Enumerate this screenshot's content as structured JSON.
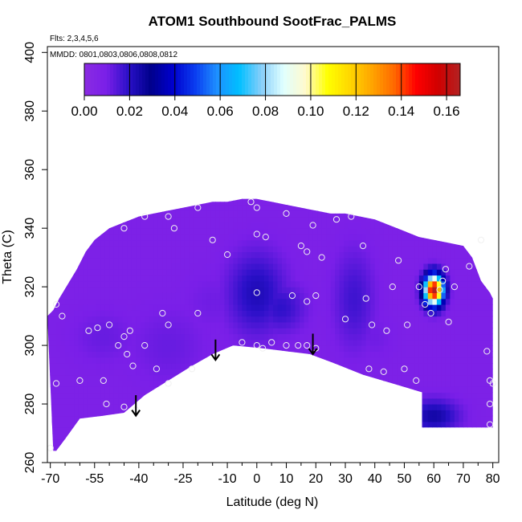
{
  "chart_data": {
    "type": "heatmap",
    "title": "ATOM1 Southbound SootFrac_PALMS",
    "subtitle_flights": "Flts: 2,3,4,5,6",
    "subtitle_dates": "MMDD: 0801,0803,0806,0808,0812",
    "xlabel": "Latitude (deg N)",
    "ylabel": "Theta (C)",
    "xlim": [
      -71,
      82
    ],
    "ylim": [
      260,
      402
    ],
    "x_ticks": [
      -70,
      -55,
      -40,
      -25,
      -10,
      0,
      10,
      20,
      30,
      40,
      50,
      60,
      70,
      80
    ],
    "x_tick_labels": [
      "-70",
      "-55",
      "-40",
      "-25",
      "-10",
      "0",
      "10",
      "20",
      "30",
      "40",
      "50",
      "60",
      "70",
      "80"
    ],
    "x_minor_ticks": [
      -65,
      -60,
      -50,
      -45,
      -35,
      -30,
      -20,
      -15,
      -5,
      5,
      15,
      25,
      35,
      45,
      55,
      65,
      75
    ],
    "y_ticks": [
      260,
      280,
      300,
      320,
      340,
      360,
      380,
      400
    ],
    "y_tick_labels": [
      "260",
      "280",
      "300",
      "320",
      "340",
      "360",
      "380",
      "400"
    ],
    "colorbar": {
      "min": 0.0,
      "max": 0.166,
      "ticks": [
        0.0,
        0.02,
        0.04,
        0.06,
        0.08,
        0.1,
        0.12,
        0.14,
        0.16
      ],
      "tick_labels": [
        "0.00",
        "0.02",
        "0.04",
        "0.06",
        "0.08",
        "0.10",
        "0.12",
        "0.14",
        "0.16"
      ],
      "colors": [
        "#8a2be2",
        "#7a1fe8",
        "#2a10c8",
        "#00008b",
        "#0000cd",
        "#0a3cf0",
        "#1e90ff",
        "#00bfff",
        "#87cefa",
        "#e0ffff",
        "#fffacd",
        "#ffff00",
        "#ffd700",
        "#ffa500",
        "#ff6a00",
        "#ff0000",
        "#d00000",
        "#b22222"
      ]
    },
    "background_value": 0.008,
    "domain_top": [
      [
        -71,
        310
      ],
      [
        -69,
        312
      ],
      [
        -67,
        316
      ],
      [
        -64,
        321
      ],
      [
        -61,
        326
      ],
      [
        -58,
        332
      ],
      [
        -55,
        336
      ],
      [
        -50,
        340
      ],
      [
        -45,
        342
      ],
      [
        -40,
        344
      ],
      [
        -35,
        345
      ],
      [
        -30,
        346
      ],
      [
        -25,
        347
      ],
      [
        -20,
        348
      ],
      [
        -15,
        349
      ],
      [
        -10,
        349
      ],
      [
        -5,
        350
      ],
      [
        0,
        350
      ],
      [
        5,
        349
      ],
      [
        10,
        348
      ],
      [
        15,
        347
      ],
      [
        20,
        346
      ],
      [
        25,
        345
      ],
      [
        30,
        345
      ],
      [
        35,
        344
      ],
      [
        40,
        343
      ],
      [
        45,
        341
      ],
      [
        50,
        339
      ],
      [
        55,
        337
      ],
      [
        60,
        336
      ],
      [
        65,
        335
      ],
      [
        70,
        334
      ],
      [
        73,
        330
      ],
      [
        76,
        322
      ],
      [
        79,
        318
      ],
      [
        80,
        316
      ]
    ],
    "domain_bottom": [
      [
        80,
        272
      ],
      [
        56,
        272
      ],
      [
        56,
        284
      ],
      [
        46,
        287
      ],
      [
        36,
        290
      ],
      [
        26,
        294
      ],
      [
        18,
        297
      ],
      [
        10,
        298
      ],
      [
        2,
        299
      ],
      [
        -8,
        300
      ],
      [
        -15,
        297
      ],
      [
        -22,
        293
      ],
      [
        -30,
        288
      ],
      [
        -38,
        283
      ],
      [
        -45,
        277
      ],
      [
        -52,
        276
      ],
      [
        -60,
        275
      ],
      [
        -65,
        268
      ],
      [
        -68,
        264
      ],
      [
        -69,
        264
      ]
    ],
    "features": [
      {
        "lat": -30,
        "theta": 300,
        "value": 0.012,
        "sx": 10,
        "sy": 10
      },
      {
        "lat": -52,
        "theta": 303,
        "value": 0.012,
        "sx": 8,
        "sy": 7
      },
      {
        "lat": 0,
        "theta": 318,
        "value": 0.022,
        "sx": 7,
        "sy": 10
      },
      {
        "lat": 8,
        "theta": 313,
        "value": 0.019,
        "sx": 6,
        "sy": 6
      },
      {
        "lat": -15,
        "theta": 315,
        "value": 0.011,
        "sx": 8,
        "sy": 8
      },
      {
        "lat": 33,
        "theta": 316,
        "value": 0.017,
        "sx": 5,
        "sy": 12
      },
      {
        "lat": 40,
        "theta": 303,
        "value": 0.011,
        "sx": 5,
        "sy": 6
      },
      {
        "lat": 60,
        "theta": 276,
        "value": 0.025,
        "sx": 6,
        "sy": 4
      },
      {
        "lat": 60,
        "theta": 319,
        "value": 0.166,
        "sx": 2.2,
        "sy": 3.5
      }
    ],
    "observation_points": [
      {
        "lat": -68,
        "theta": 314
      },
      {
        "lat": -66,
        "theta": 310
      },
      {
        "lat": -57,
        "theta": 305
      },
      {
        "lat": -54,
        "theta": 306
      },
      {
        "lat": -50,
        "theta": 307
      },
      {
        "lat": -47,
        "theta": 300
      },
      {
        "lat": -45,
        "theta": 303
      },
      {
        "lat": -43,
        "theta": 305
      },
      {
        "lat": -44,
        "theta": 297
      },
      {
        "lat": -42,
        "theta": 293
      },
      {
        "lat": -41,
        "theta": 278
      },
      {
        "lat": -45,
        "theta": 279
      },
      {
        "lat": -51,
        "theta": 280
      },
      {
        "lat": -52,
        "theta": 288
      },
      {
        "lat": -60,
        "theta": 288
      },
      {
        "lat": -68,
        "theta": 287
      },
      {
        "lat": -34,
        "theta": 292
      },
      {
        "lat": -30,
        "theta": 287
      },
      {
        "lat": -38,
        "theta": 300
      },
      {
        "lat": -30,
        "theta": 307
      },
      {
        "lat": -32,
        "theta": 311
      },
      {
        "lat": -20,
        "theta": 311
      },
      {
        "lat": -22,
        "theta": 292
      },
      {
        "lat": -15,
        "theta": 336
      },
      {
        "lat": -28,
        "theta": 340
      },
      {
        "lat": -38,
        "theta": 344
      },
      {
        "lat": -45,
        "theta": 340
      },
      {
        "lat": -30,
        "theta": 344
      },
      {
        "lat": -10,
        "theta": 331
      },
      {
        "lat": -20,
        "theta": 347
      },
      {
        "lat": -5,
        "theta": 301
      },
      {
        "lat": 0,
        "theta": 300
      },
      {
        "lat": 2,
        "theta": 299
      },
      {
        "lat": 5,
        "theta": 301
      },
      {
        "lat": 10,
        "theta": 300
      },
      {
        "lat": 14,
        "theta": 300
      },
      {
        "lat": 17,
        "theta": 300
      },
      {
        "lat": 20,
        "theta": 299
      },
      {
        "lat": 0,
        "theta": 318
      },
      {
        "lat": 12,
        "theta": 317
      },
      {
        "lat": 17,
        "theta": 315
      },
      {
        "lat": 20,
        "theta": 317
      },
      {
        "lat": 0,
        "theta": 338
      },
      {
        "lat": 3,
        "theta": 337
      },
      {
        "lat": 10,
        "theta": 345
      },
      {
        "lat": 15,
        "theta": 334
      },
      {
        "lat": 17,
        "theta": 332
      },
      {
        "lat": 19,
        "theta": 341
      },
      {
        "lat": 22,
        "theta": 330
      },
      {
        "lat": 27,
        "theta": 343
      },
      {
        "lat": 30,
        "theta": 309
      },
      {
        "lat": 32,
        "theta": 344
      },
      {
        "lat": 36,
        "theta": 334
      },
      {
        "lat": 37,
        "theta": 316
      },
      {
        "lat": 39,
        "theta": 307
      },
      {
        "lat": 38,
        "theta": 292
      },
      {
        "lat": 43,
        "theta": 291
      },
      {
        "lat": 44,
        "theta": 305
      },
      {
        "lat": 46,
        "theta": 320
      },
      {
        "lat": 48,
        "theta": 329
      },
      {
        "lat": 51,
        "theta": 307
      },
      {
        "lat": 50,
        "theta": 292
      },
      {
        "lat": 54,
        "theta": 288
      },
      {
        "lat": 55,
        "theta": 320
      },
      {
        "lat": 57,
        "theta": 314
      },
      {
        "lat": 59,
        "theta": 311
      },
      {
        "lat": 62,
        "theta": 319
      },
      {
        "lat": 63,
        "theta": 322
      },
      {
        "lat": 64,
        "theta": 326
      },
      {
        "lat": 67,
        "theta": 320
      },
      {
        "lat": 65,
        "theta": 308
      },
      {
        "lat": 72,
        "theta": 327
      },
      {
        "lat": 76,
        "theta": 336
      },
      {
        "lat": -2,
        "theta": 349
      },
      {
        "lat": 0,
        "theta": 347
      },
      {
        "lat": 78,
        "theta": 298
      },
      {
        "lat": 79,
        "theta": 288
      },
      {
        "lat": 80,
        "theta": 287
      },
      {
        "lat": 79,
        "theta": 280
      },
      {
        "lat": 79,
        "theta": 273
      },
      {
        "lat": -70,
        "theta": 265
      }
    ],
    "arrows": [
      {
        "lat": -41,
        "theta_start": 283,
        "theta_end": 276
      },
      {
        "lat": -14,
        "theta_start": 302,
        "theta_end": 295
      },
      {
        "lat": 19,
        "theta_start": 304,
        "theta_end": 297
      }
    ]
  }
}
